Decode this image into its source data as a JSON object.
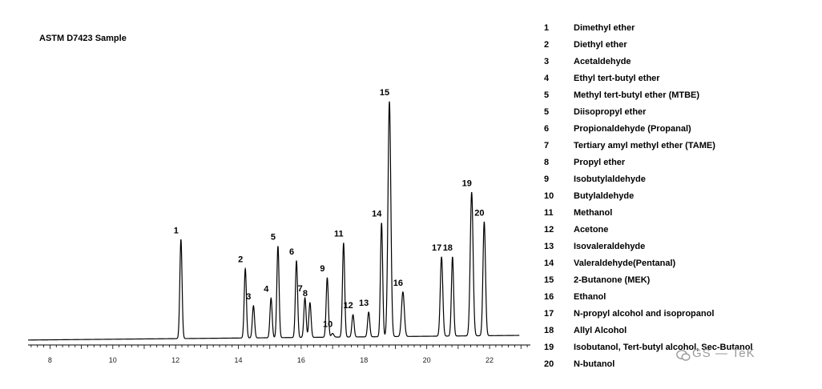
{
  "chart_data": {
    "type": "line",
    "title": "ASTM D7423 Sample",
    "xlabel": "",
    "ylabel": "",
    "xlim": [
      7.3,
      23.3
    ],
    "ylim": [
      0,
      100
    ],
    "x_ticks": [
      8,
      10,
      12,
      14,
      16,
      18,
      20,
      22
    ],
    "x_tick_labels": [
      "8",
      "10",
      "12",
      "14",
      "16",
      "18",
      "20",
      "22"
    ],
    "grid": false,
    "baseline": 2.0,
    "peaks": [
      {
        "label": "1",
        "x": 12.17,
        "height": 40,
        "width": 0.035
      },
      {
        "label": "2",
        "x": 14.22,
        "height": 28,
        "width": 0.035
      },
      {
        "label": "3",
        "x": 14.48,
        "height": 13,
        "width": 0.035
      },
      {
        "label": "4",
        "x": 15.04,
        "height": 16,
        "width": 0.035
      },
      {
        "label": "5",
        "x": 15.26,
        "height": 37,
        "width": 0.035
      },
      {
        "label": "6",
        "x": 15.85,
        "height": 31,
        "width": 0.035
      },
      {
        "label": "7",
        "x": 16.12,
        "height": 16,
        "width": 0.035
      },
      {
        "label": "8",
        "x": 16.28,
        "height": 14,
        "width": 0.035
      },
      {
        "label": "9",
        "x": 16.83,
        "height": 24,
        "width": 0.035
      },
      {
        "label": "10",
        "x": 17.0,
        "height": 1.5,
        "width": 0.04
      },
      {
        "label": "11",
        "x": 17.35,
        "height": 38,
        "width": 0.035
      },
      {
        "label": "12",
        "x": 17.65,
        "height": 9,
        "width": 0.035
      },
      {
        "label": "13",
        "x": 18.15,
        "height": 10,
        "width": 0.035
      },
      {
        "label": "14",
        "x": 18.56,
        "height": 46,
        "width": 0.035
      },
      {
        "label": "15",
        "x": 18.81,
        "height": 95,
        "width": 0.045
      },
      {
        "label": "16",
        "x": 19.24,
        "height": 18,
        "width": 0.045
      },
      {
        "label": "17",
        "x": 20.47,
        "height": 32,
        "width": 0.04
      },
      {
        "label": "18",
        "x": 20.82,
        "height": 32,
        "width": 0.035
      },
      {
        "label": "19",
        "x": 21.43,
        "height": 58,
        "width": 0.045
      },
      {
        "label": "20",
        "x": 21.83,
        "height": 46,
        "width": 0.04
      }
    ],
    "legend": [
      {
        "num": "1",
        "name": "Dimethyl ether"
      },
      {
        "num": "2",
        "name": "Diethyl ether"
      },
      {
        "num": "3",
        "name": "Acetaldehyde"
      },
      {
        "num": "4",
        "name": "Ethyl tert-butyl ether"
      },
      {
        "num": "5",
        "name": "Methyl tert-butyl ether (MTBE)"
      },
      {
        "num": "5",
        "name": "Diisopropyl ether"
      },
      {
        "num": "6",
        "name": "Propionaldehyde (Propanal)"
      },
      {
        "num": "7",
        "name": "Tertiary amyl methyl ether (TAME)"
      },
      {
        "num": "8",
        "name": "Propyl ether"
      },
      {
        "num": "9",
        "name": "Isobutylaldehyde"
      },
      {
        "num": "10",
        "name": "Butylaldehyde"
      },
      {
        "num": "11",
        "name": "Methanol"
      },
      {
        "num": "12",
        "name": "Acetone"
      },
      {
        "num": "13",
        "name": "Isovaleraldehyde"
      },
      {
        "num": "14",
        "name": "Valeraldehyde(Pentanal)"
      },
      {
        "num": "15",
        "name": "2-Butanone (MEK)"
      },
      {
        "num": "16",
        "name": "Ethanol"
      },
      {
        "num": "17",
        "name": "N-propyl alcohol and isopropanol"
      },
      {
        "num": "18",
        "name": "Allyl Alcohol"
      },
      {
        "num": "19",
        "name": "Isobutanol, Tert-butyl alcohol, Sec-Butanol"
      },
      {
        "num": "20",
        "name": "N-butanol"
      }
    ],
    "colors": {
      "trace": "#000000",
      "axis": "#000000"
    }
  },
  "watermark": {
    "text": "GS — TeK",
    "icon": "wechat-icon"
  }
}
